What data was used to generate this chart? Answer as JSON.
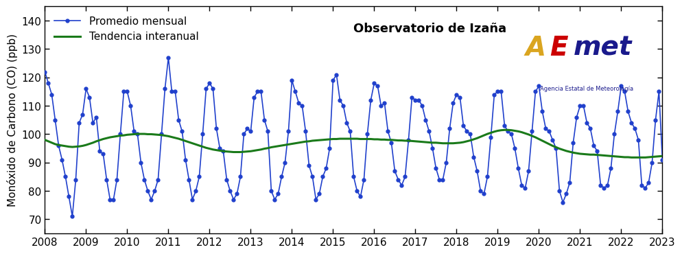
{
  "monthly_values": [
    122,
    118,
    114,
    105,
    96,
    91,
    85,
    78,
    71,
    84,
    104,
    107,
    116,
    113,
    104,
    106,
    94,
    93,
    84,
    77,
    77,
    84,
    100,
    115,
    115,
    110,
    101,
    100,
    90,
    84,
    80,
    77,
    80,
    84,
    100,
    116,
    127,
    115,
    115,
    105,
    101,
    91,
    84,
    77,
    80,
    85,
    100,
    116,
    118,
    116,
    102,
    95,
    94,
    84,
    80,
    77,
    79,
    85,
    100,
    102,
    101,
    113,
    115,
    115,
    105,
    101,
    80,
    77,
    79,
    85,
    90,
    101,
    119,
    115,
    111,
    110,
    101,
    89,
    85,
    77,
    79,
    85,
    88,
    95,
    119,
    121,
    112,
    110,
    104,
    101,
    85,
    80,
    78,
    84,
    100,
    112,
    118,
    117,
    110,
    111,
    101,
    97,
    87,
    84,
    82,
    85,
    98,
    113,
    112,
    112,
    110,
    105,
    101,
    95,
    88,
    84,
    84,
    90,
    102,
    111,
    114,
    113,
    103,
    101,
    100,
    92,
    87,
    80,
    79,
    85,
    99,
    114,
    115,
    115,
    103,
    101,
    100,
    95,
    88,
    82,
    81,
    87,
    101,
    115,
    117,
    108,
    102,
    101,
    98,
    95,
    80,
    76,
    79,
    83,
    97,
    106,
    110,
    110,
    104,
    102,
    96,
    94,
    82,
    81,
    82,
    88,
    100,
    108,
    117,
    115,
    108,
    104,
    102,
    98,
    82,
    81,
    83,
    90,
    105,
    115,
    91
  ],
  "trend_values": [
    98.0,
    97.5,
    97.0,
    96.5,
    96.2,
    96.0,
    95.8,
    95.6,
    95.5,
    95.6,
    95.7,
    95.9,
    96.2,
    96.6,
    97.0,
    97.5,
    97.9,
    98.3,
    98.6,
    98.9,
    99.1,
    99.3,
    99.5,
    99.6,
    99.8,
    99.9,
    100.0,
    100.1,
    100.1,
    100.1,
    100.0,
    100.0,
    99.9,
    99.8,
    99.7,
    99.5,
    99.3,
    99.0,
    98.7,
    98.4,
    98.0,
    97.6,
    97.2,
    96.8,
    96.4,
    96.0,
    95.6,
    95.2,
    94.9,
    94.6,
    94.4,
    94.2,
    94.0,
    93.9,
    93.8,
    93.7,
    93.7,
    93.7,
    93.8,
    93.9,
    94.0,
    94.2,
    94.4,
    94.6,
    94.9,
    95.1,
    95.4,
    95.6,
    95.8,
    96.0,
    96.2,
    96.4,
    96.6,
    96.8,
    97.0,
    97.2,
    97.4,
    97.5,
    97.7,
    97.8,
    97.9,
    98.0,
    98.1,
    98.2,
    98.3,
    98.3,
    98.4,
    98.4,
    98.4,
    98.4,
    98.4,
    98.4,
    98.3,
    98.3,
    98.3,
    98.3,
    98.2,
    98.2,
    98.1,
    98.1,
    98.0,
    98.0,
    97.9,
    97.8,
    97.8,
    97.7,
    97.7,
    97.6,
    97.5,
    97.4,
    97.3,
    97.2,
    97.1,
    97.0,
    97.0,
    96.9,
    96.8,
    96.8,
    96.8,
    96.8,
    96.9,
    97.0,
    97.2,
    97.5,
    97.8,
    98.2,
    98.6,
    99.1,
    99.6,
    100.1,
    100.5,
    100.9,
    101.2,
    101.4,
    101.5,
    101.5,
    101.4,
    101.2,
    101.0,
    100.7,
    100.3,
    99.9,
    99.4,
    98.9,
    98.3,
    97.7,
    97.1,
    96.5,
    95.9,
    95.4,
    94.9,
    94.5,
    94.1,
    93.8,
    93.5,
    93.3,
    93.1,
    93.0,
    92.9,
    92.8,
    92.8,
    92.7,
    92.6,
    92.5,
    92.4,
    92.3,
    92.2,
    92.1,
    92.0,
    91.9,
    91.9,
    91.8,
    91.8,
    91.8,
    91.8,
    91.8,
    91.9,
    92.0,
    92.1,
    92.2,
    92.3
  ],
  "start_year": 2008,
  "start_month": 1,
  "ylabel": "Monóxido de Carbono (CO) (ppb)",
  "legend_label_blue": "Promedio mensual",
  "legend_label_green": "Tendencia interanual",
  "annotation": "Observatorio de Izaña",
  "ylim": [
    65,
    145
  ],
  "yticks": [
    70,
    80,
    90,
    100,
    110,
    120,
    130,
    140
  ],
  "xticks": [
    2008,
    2009,
    2010,
    2011,
    2012,
    2013,
    2014,
    2015,
    2016,
    2017,
    2018,
    2019,
    2020,
    2021,
    2022,
    2023
  ],
  "blue_color": "#2040CC",
  "green_color": "#1A7A1A",
  "bg_color": "#FFFFFF",
  "linewidth_blue": 1.2,
  "linewidth_green": 2.2,
  "marker_size": 3.5,
  "annotation_fontsize": 13,
  "axis_label_fontsize": 11,
  "tick_fontsize": 11,
  "legend_fontsize": 11
}
